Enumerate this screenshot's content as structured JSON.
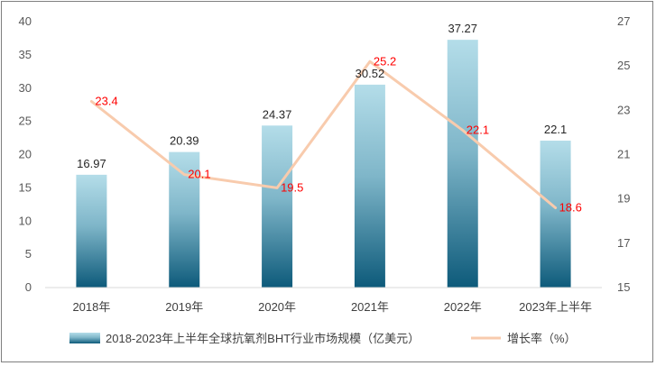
{
  "chart_data": {
    "type": "bar",
    "categories": [
      "2018年",
      "2019年",
      "2020年",
      "2021年",
      "2022年",
      "2023年上半年"
    ],
    "series": [
      {
        "name": "2018-2023年上半年全球抗氧剂BHT行业市场规模（亿美元）",
        "type": "bar",
        "axis": "left",
        "values": [
          16.97,
          20.39,
          24.37,
          30.52,
          37.27,
          22.1
        ],
        "labels": [
          "16.97",
          "20.39",
          "24.37",
          "30.52",
          "37.27",
          "22.1"
        ]
      },
      {
        "name": "增长率（%）",
        "type": "line",
        "axis": "right",
        "values": [
          23.4,
          20.1,
          19.5,
          25.2,
          22.1,
          18.6
        ],
        "labels": [
          "23.4",
          "20.1",
          "19.5",
          "25.2",
          "22.1",
          "18.6"
        ]
      }
    ],
    "y_left": {
      "min": 0,
      "max": 40,
      "step": 5,
      "ticks": [
        "0",
        "5",
        "10",
        "15",
        "20",
        "25",
        "30",
        "35",
        "40"
      ]
    },
    "y_right": {
      "min": 15,
      "max": 27,
      "step": 2,
      "ticks": [
        "15",
        "17",
        "19",
        "21",
        "23",
        "25",
        "27"
      ]
    },
    "legend_position": "bottom",
    "colors": {
      "bar_top": "#b4dde9",
      "bar_bottom": "#0d5a7a",
      "line": "#f8cbad",
      "rate_label": "#ff0000",
      "axis": "#d9d9d9"
    }
  }
}
